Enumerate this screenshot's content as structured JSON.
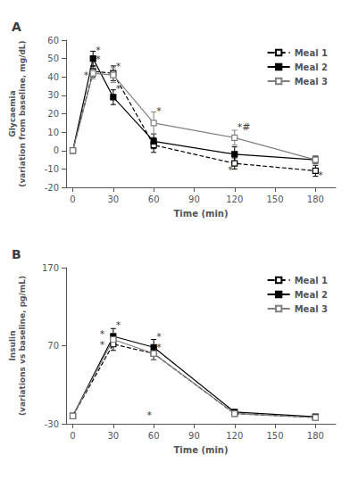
{
  "chart_data": [
    {
      "type": "line",
      "title": "A",
      "x": [
        0,
        15,
        30,
        60,
        120,
        180
      ],
      "xlabel": "Time (min)",
      "ylabel": "Glycaemia\n(variation from baseline, mg/dL)",
      "xlim": [
        -5,
        195
      ],
      "xticks": [
        0,
        30,
        60,
        90,
        120,
        150,
        180
      ],
      "ylim": [
        -20,
        60
      ],
      "yticks": [
        -20,
        -10,
        0,
        10,
        20,
        30,
        40,
        50,
        60
      ],
      "grid": false,
      "legend": "upper right",
      "series": [
        {
          "name": "Meal 1",
          "color": "#000000",
          "marker": "open_square",
          "line_style": "dashed",
          "values": [
            0,
            43,
            42,
            3,
            -7,
            -11
          ],
          "errors": [
            0,
            3,
            4,
            4,
            3,
            3
          ]
        },
        {
          "name": "Meal 2",
          "color": "#000000",
          "marker": "square",
          "line_style": "solid",
          "values": [
            0,
            50,
            29,
            5,
            -2,
            -5
          ],
          "errors": [
            0,
            4,
            4,
            4,
            4,
            2
          ]
        },
        {
          "name": "Meal 3",
          "color": "#808080",
          "marker": "open_square",
          "line_style": "solid",
          "values": [
            0,
            42,
            41,
            15,
            7,
            -5
          ],
          "errors": [
            0,
            3,
            4,
            6,
            4,
            2
          ]
        }
      ],
      "annotations": [
        {
          "x": 17,
          "y": 52,
          "text": "*"
        },
        {
          "x": 17,
          "y": 47,
          "text": "*"
        },
        {
          "x": 8,
          "y": 38,
          "text": "*"
        },
        {
          "x": 32,
          "y": 31,
          "text": "*"
        },
        {
          "x": 32,
          "y": 43,
          "text": "*"
        },
        {
          "x": 62,
          "y": 19,
          "text": "*"
        },
        {
          "x": 122,
          "y": 10,
          "text": "*#"
        },
        {
          "x": 115,
          "y": -13,
          "text": "*"
        },
        {
          "x": 182,
          "y": -16,
          "text": "*"
        }
      ]
    },
    {
      "type": "line",
      "title": "B",
      "x": [
        0,
        30,
        60,
        120,
        180
      ],
      "xlabel": "Time (min)",
      "ylabel": "Insulin\n(variations vs baseline, pg/mL)",
      "xlim": [
        -5,
        195
      ],
      "xticks": [
        0,
        30,
        60,
        90,
        120,
        150,
        180
      ],
      "ylim": [
        -30,
        170
      ],
      "yticks": [
        -30,
        70,
        170
      ],
      "grid": false,
      "legend": "upper right",
      "series": [
        {
          "name": "Meal 1",
          "color": "#000000",
          "marker": "open_square",
          "line_style": "dashed",
          "values": [
            -20,
            72,
            60,
            -17,
            -22
          ],
          "errors": [
            1,
            8,
            8,
            2,
            2
          ]
        },
        {
          "name": "Meal 2",
          "color": "#000000",
          "marker": "square",
          "line_style": "solid",
          "values": [
            -20,
            82,
            68,
            -15,
            -21
          ],
          "errors": [
            1,
            10,
            10,
            3,
            2
          ]
        },
        {
          "name": "Meal 3",
          "color": "#808080",
          "marker": "open_square",
          "line_style": "solid",
          "values": [
            -20,
            78,
            60,
            -17,
            -22
          ],
          "errors": [
            1,
            8,
            8,
            2,
            2
          ]
        }
      ],
      "annotations": [
        {
          "x": 32,
          "y": 90,
          "text": "*"
        },
        {
          "x": 20,
          "y": 79,
          "text": "*"
        },
        {
          "x": 20,
          "y": 65,
          "text": "*"
        },
        {
          "x": 62,
          "y": 75,
          "text": "*"
        },
        {
          "x": 62,
          "y": 62,
          "text": "*"
        },
        {
          "x": 55,
          "y": -25,
          "text": "*"
        }
      ]
    }
  ]
}
